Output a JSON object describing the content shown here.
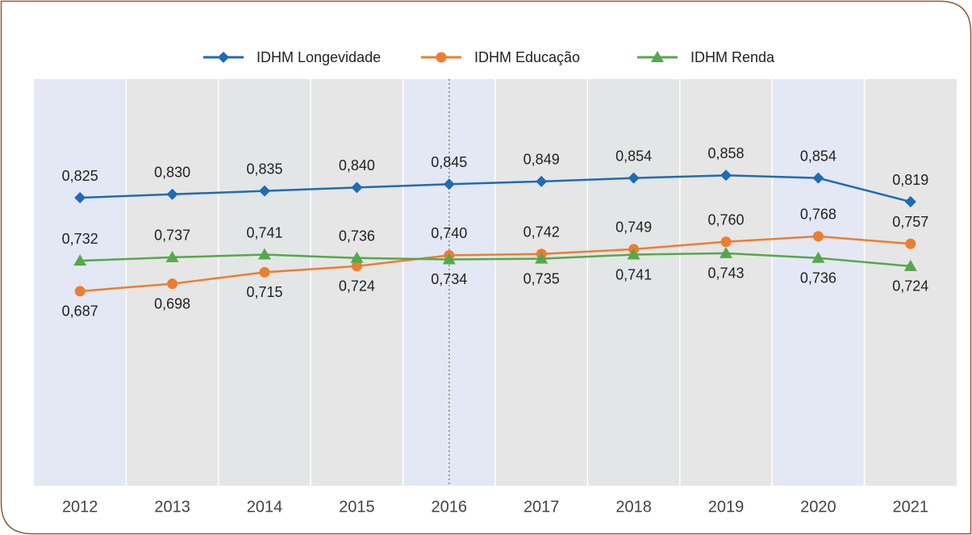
{
  "chart_data": {
    "type": "line",
    "categories": [
      "2012",
      "2013",
      "2014",
      "2015",
      "2016",
      "2017",
      "2018",
      "2019",
      "2020",
      "2021"
    ],
    "ylim": [
      0.4,
      1.0
    ],
    "series": [
      {
        "name": "IDHM Longevidade",
        "color": "#1f6bb5",
        "marker": "diamond",
        "values": [
          0.825,
          0.83,
          0.835,
          0.84,
          0.845,
          0.849,
          0.854,
          0.858,
          0.854,
          0.819
        ],
        "value_labels": [
          "0,825",
          "0,830",
          "0,835",
          "0,840",
          "0,845",
          "0,849",
          "0,854",
          "0,858",
          "0,854",
          "0,819"
        ]
      },
      {
        "name": "IDHM Educação",
        "color": "#ed7d31",
        "marker": "circle",
        "values": [
          0.687,
          0.698,
          0.715,
          0.724,
          0.74,
          0.742,
          0.749,
          0.76,
          0.768,
          0.757
        ],
        "value_labels": [
          "0,687",
          "0,698",
          "0,715",
          "0,724",
          "0,740",
          "0,742",
          "0,749",
          "0,760",
          "0,768",
          "0,757"
        ]
      },
      {
        "name": "IDHM Renda",
        "color": "#55a84b",
        "marker": "triangle",
        "values": [
          0.732,
          0.737,
          0.741,
          0.736,
          0.734,
          0.735,
          0.741,
          0.743,
          0.736,
          0.724
        ],
        "value_labels": [
          "0,732",
          "0,737",
          "0,741",
          "0,736",
          "0,734",
          "0,735",
          "0,741",
          "0,743",
          "0,736",
          "0,724"
        ]
      }
    ]
  }
}
